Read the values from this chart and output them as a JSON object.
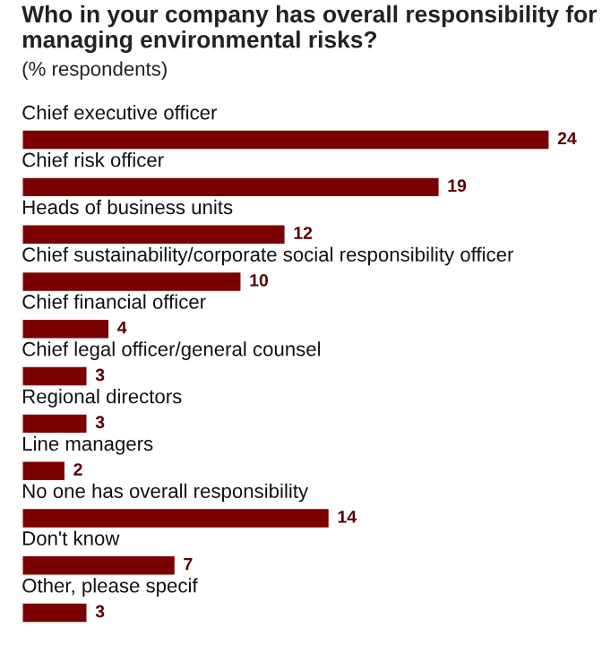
{
  "chart_data": {
    "type": "bar",
    "orientation": "horizontal",
    "title": "Who in your company has overall responsibility for managing environmental risks?",
    "subtitle": "(% respondents)",
    "categories": [
      "Chief executive officer",
      "Chief risk officer",
      "Heads of business units",
      "Chief sustainability/corporate social responsibility officer",
      "Chief financial officer",
      "Chief legal officer/general counsel",
      "Regional directors",
      "Line managers",
      "No one has overall responsibility",
      "Don't know",
      "Other, please specif"
    ],
    "values": [
      24,
      19,
      12,
      10,
      4,
      3,
      3,
      2,
      14,
      7,
      3
    ],
    "color": "#7b0000",
    "data_labels": true
  }
}
